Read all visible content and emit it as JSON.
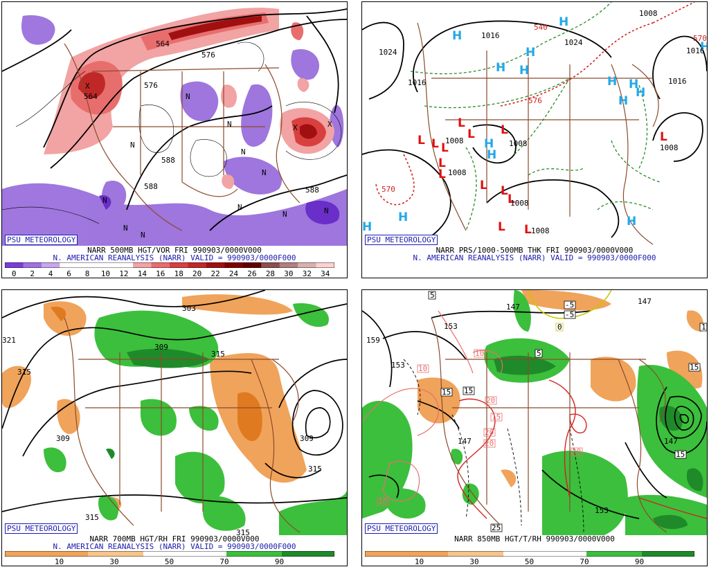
{
  "credit": "PSU METEOROLOGY",
  "source_line": "N. AMERICAN REANALYSIS (NARR) VALID = 990903/0000F000",
  "panels": [
    {
      "title": "NARR 500MB HGT/VOR FRI 990903/0000V000",
      "contour_labels": [
        "564",
        "564",
        "576",
        "576",
        "588",
        "588",
        "588"
      ],
      "colorbar_ticks": [
        "0",
        "2",
        "4",
        "6",
        "8",
        "10",
        "12",
        "14",
        "16",
        "18",
        "20",
        "22",
        "24",
        "26",
        "28",
        "30",
        "32",
        "34"
      ],
      "colorbar_colors": [
        "#7a3cd8",
        "#a070e0",
        "#c7a7ee",
        "#ffffff",
        "#ffffff",
        "#ffffff",
        "#ffffff",
        "#f2a3a3",
        "#e86e6e",
        "#d84040",
        "#c02828",
        "#a01010",
        "#800000",
        "#600000",
        "#8a5050",
        "#b08080",
        "#d8b0b0",
        "#ffd0d0"
      ]
    },
    {
      "title": "NARR PRS/1000-500MB THK FRI 990903/0000V000",
      "isobar_labels": [
        "1024",
        "1016",
        "1016",
        "1024",
        "1016",
        "1008",
        "1008",
        "1008",
        "1008",
        "1008",
        "1016",
        "1008",
        "1008"
      ],
      "thickness_labels": [
        "540",
        "570",
        "570",
        "576"
      ]
    },
    {
      "title": "NARR 700MB HGT/RH FRI 990903/0000V000",
      "contour_labels": [
        "303",
        "309",
        "315",
        "315",
        "309",
        "309",
        "315",
        "315",
        "315",
        "321"
      ],
      "colorbar_ticks": [
        "10",
        "30",
        "50",
        "70",
        "90"
      ]
    },
    {
      "title": "NARR 850MB HGT/T/RH 990903/0000V000",
      "height_labels": [
        "147",
        "153",
        "159",
        "153",
        "147",
        "147",
        "153",
        "147"
      ],
      "temp_labels": [
        "5",
        "-5",
        "-5",
        "5",
        "15",
        "15",
        "15",
        "15",
        "10",
        "10",
        "20",
        "20",
        "20",
        "20",
        "10",
        "25",
        "15",
        "15",
        "0"
      ],
      "colorbar_ticks": [
        "10",
        "30",
        "50",
        "70",
        "90"
      ]
    }
  ]
}
